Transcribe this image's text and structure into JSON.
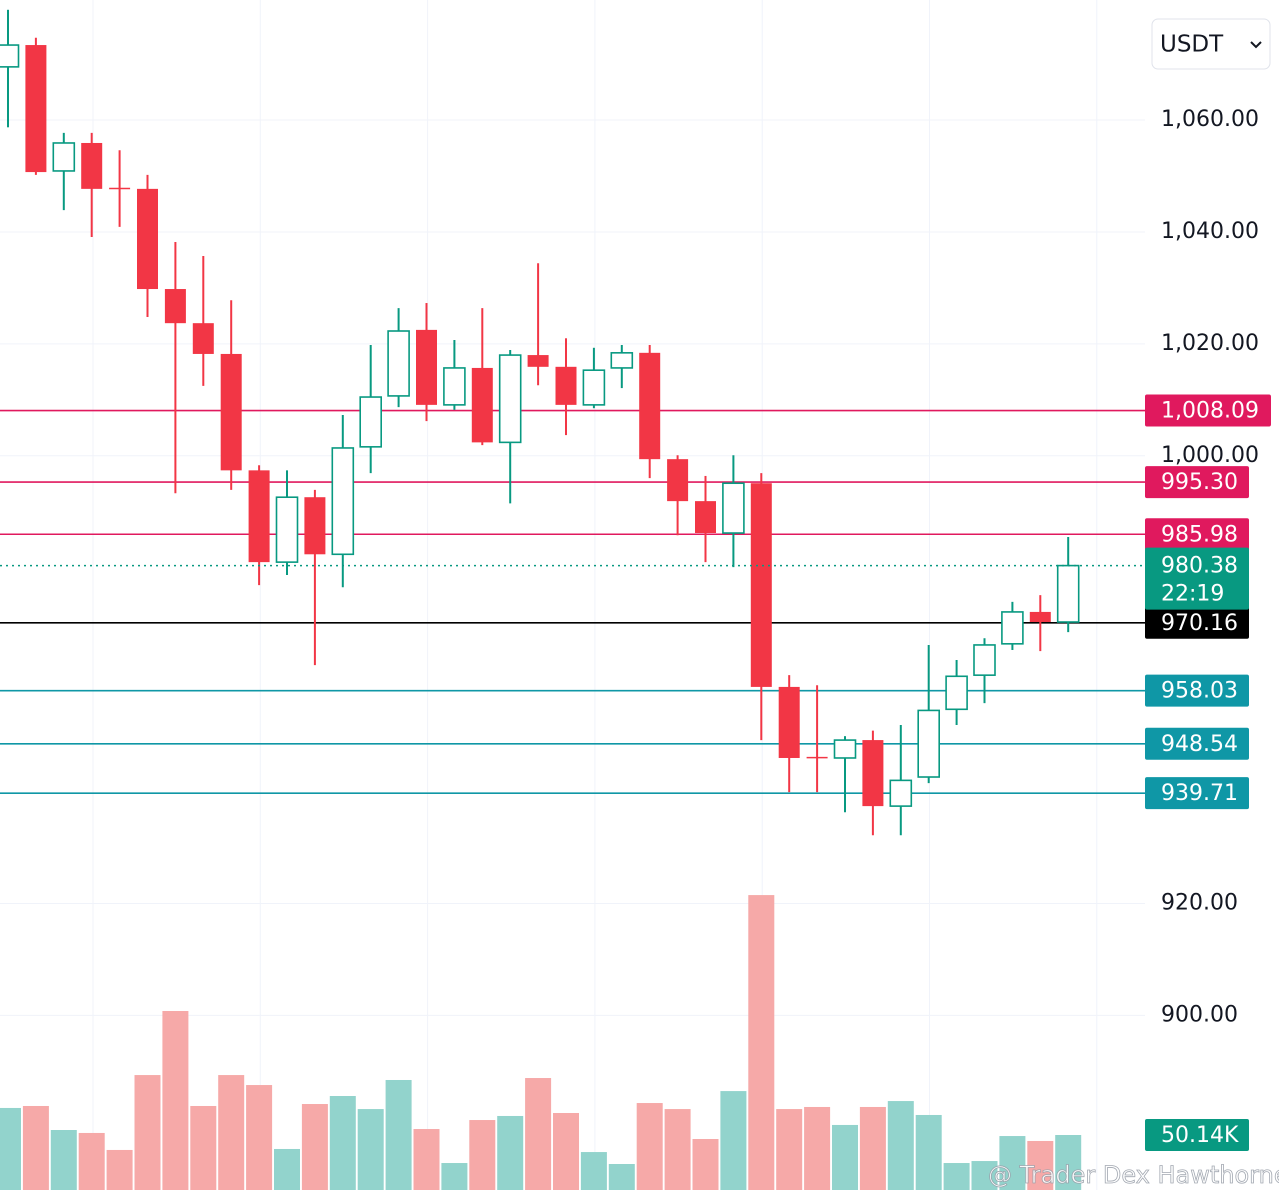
{
  "chart_data": {
    "type": "candlestick",
    "currency": "USDT",
    "watermark": "@ Trader Dex Hawthorne",
    "open": [
      1069.5,
      1073.4,
      1050.9,
      1055.9,
      1047.9,
      1047.7,
      1029.8,
      1023.7,
      1018.2,
      997.4,
      981.0,
      992.6,
      982.4,
      1001.6,
      1010.7,
      1022.5,
      1009.1,
      1015.7,
      1002.4,
      1018.0,
      1015.9,
      1009.1,
      1015.7,
      1018.4,
      999.4,
      991.9,
      986.2,
      995.1,
      958.7,
      946.2,
      946.0,
      949.2,
      937.4,
      942.6,
      954.7,
      960.8,
      966.4,
      972.1,
      970.3
    ],
    "high": [
      1079.7,
      1074.7,
      1057.7,
      1057.7,
      1054.6,
      1050.2,
      1038.2,
      1035.7,
      1027.8,
      998.3,
      997.4,
      993.9,
      1007.3,
      1019.8,
      1026.4,
      1027.3,
      1020.7,
      1026.4,
      1018.9,
      1034.4,
      1021.0,
      1019.3,
      1019.8,
      1019.8,
      1000.1,
      996.4,
      1000.1,
      996.9,
      960.8,
      959.0,
      949.9,
      950.9,
      951.9,
      966.2,
      963.5,
      967.4,
      973.9,
      975.1,
      985.5
    ],
    "low": [
      1058.7,
      1050.2,
      1043.9,
      1039.1,
      1040.9,
      1024.8,
      993.3,
      1012.5,
      993.9,
      976.9,
      978.7,
      962.6,
      976.5,
      996.9,
      1008.7,
      1006.2,
      1008.2,
      1001.9,
      991.5,
      1012.6,
      1003.7,
      1008.5,
      1012.1,
      996.0,
      985.8,
      981.0,
      980.1,
      949.2,
      939.9,
      939.9,
      936.3,
      932.2,
      932.2,
      941.5,
      951.9,
      955.8,
      965.3,
      965.1,
      968.5
    ],
    "close": [
      1073.4,
      1050.7,
      1055.9,
      1047.7,
      1047.7,
      1029.8,
      1023.7,
      1018.2,
      997.4,
      981.0,
      992.6,
      982.4,
      1001.4,
      1010.5,
      1022.3,
      1009.1,
      1015.7,
      1002.4,
      1018.0,
      1015.9,
      1009.1,
      1015.3,
      1018.4,
      999.4,
      991.9,
      986.2,
      995.1,
      958.7,
      946.0,
      946.0,
      949.2,
      937.4,
      942.0,
      954.5,
      960.6,
      966.2,
      972.1,
      970.3,
      980.38
    ],
    "volume": [
      74.8,
      76.6,
      54.7,
      52.0,
      36.5,
      104.8,
      163.2,
      76.6,
      104.8,
      95.7,
      37.4,
      78.4,
      85.7,
      73.8,
      100.3,
      55.6,
      24.6,
      63.8,
      67.5,
      102.1,
      70.2,
      34.6,
      23.7,
      79.3,
      73.8,
      46.5,
      90.2,
      268.9,
      73.8,
      75.7,
      59.3,
      75.7,
      81.1,
      68.4,
      24.6,
      26.4,
      49.2,
      44.7,
      50.14
    ],
    "vlim": [
      0,
      1085
    ],
    "volume_marker": {
      "value": 50.14,
      "label": "50.14K"
    },
    "up_color": "#089981",
    "down_color": "#f23645",
    "volume_up_color": "#92d3cc",
    "volume_down_color": "#f6a9a8",
    "ylim": [
      868.8,
      1081.45
    ],
    "yticks": [
      {
        "value": 1060,
        "label": "1,060.00"
      },
      {
        "value": 1040,
        "label": "1,040.00"
      },
      {
        "value": 1020,
        "label": "1,020.00"
      },
      {
        "value": 1000,
        "label": "1,000.00"
      },
      {
        "value": 920,
        "label": "920.00"
      },
      {
        "value": 900,
        "label": "900.00"
      }
    ],
    "grid": true,
    "price_lines": [
      {
        "value": 1008.09,
        "label": "1,008.09",
        "color": "#e0195e"
      },
      {
        "value": 995.3,
        "label": "995.30",
        "color": "#e0195e"
      },
      {
        "value": 985.98,
        "label": "985.98",
        "color": "#e0195e"
      },
      {
        "value": 958.03,
        "label": "958.03",
        "color": "#0f97a6"
      },
      {
        "value": 948.54,
        "label": "948.54",
        "color": "#0f97a6"
      },
      {
        "value": 939.71,
        "label": "939.71",
        "color": "#0f97a6"
      }
    ],
    "reference_line": {
      "value": 970.16,
      "label": "970.16",
      "color": "#000000"
    },
    "current_price": {
      "value": 980.38,
      "label": "980.38",
      "countdown": "22:19",
      "color": "#089981"
    }
  }
}
